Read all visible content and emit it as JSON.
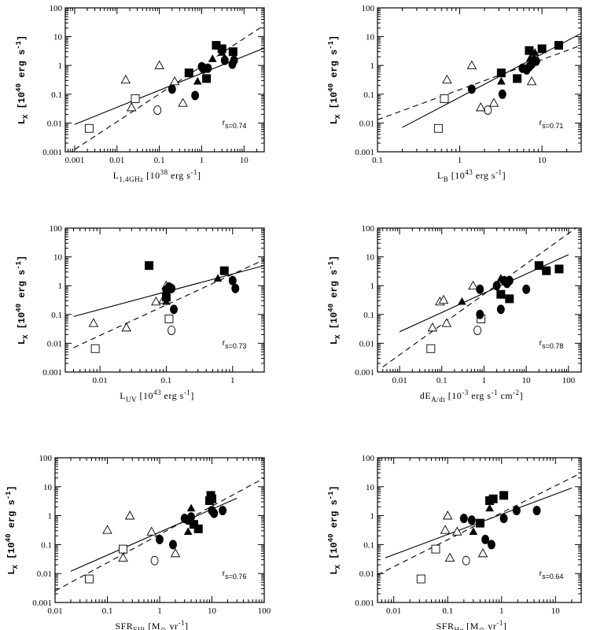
{
  "chart_data": [
    {
      "type": "scatter",
      "ylabel": "L_X [10^40 erg s^-1]",
      "xlabel": "L_1.4GHz [10^38 erg s^-1]",
      "xlog": true,
      "ylog": true,
      "xlim": [
        0.0006,
        30
      ],
      "ylim": [
        0.001,
        100
      ],
      "xticks": [
        0.001,
        0.01,
        0.1,
        1,
        10
      ],
      "xticklabels": [
        "0.001",
        "0.01",
        "0.1",
        "1",
        "10"
      ],
      "yticks": [
        0.001,
        0.01,
        0.1,
        1,
        10,
        100
      ],
      "yticklabels": [
        "0.001",
        "0.01",
        "0.1",
        "1",
        "10",
        "100"
      ],
      "rs": "r_s=0.74",
      "fits": [
        {
          "style": "solid",
          "points": [
            [
              0.001,
              0.009
            ],
            [
              30,
              4
            ]
          ]
        },
        {
          "style": "dashed",
          "points": [
            [
              0.001,
              0.0012
            ],
            [
              30,
              25
            ]
          ]
        }
      ],
      "points": [
        {
          "m": "open-square",
          "x": 0.0022,
          "y": 0.0065
        },
        {
          "m": "open-square",
          "x": 0.027,
          "y": 0.07
        },
        {
          "m": "open-circle",
          "x": 0.09,
          "y": 0.028
        },
        {
          "m": "open-triangle",
          "x": 0.016,
          "y": 0.32
        },
        {
          "m": "open-triangle",
          "x": 0.022,
          "y": 0.035
        },
        {
          "m": "open-triangle",
          "x": 0.1,
          "y": 1.0
        },
        {
          "m": "open-triangle",
          "x": 0.23,
          "y": 0.28
        },
        {
          "m": "open-triangle",
          "x": 0.36,
          "y": 0.05
        },
        {
          "m": "filled-circle",
          "x": 0.2,
          "y": 0.15
        },
        {
          "m": "filled-circle",
          "x": 0.7,
          "y": 0.09
        },
        {
          "m": "filled-circle",
          "x": 1.0,
          "y": 0.9
        },
        {
          "m": "filled-circle",
          "x": 1.1,
          "y": 0.75
        },
        {
          "m": "filled-circle",
          "x": 1.4,
          "y": 0.8
        },
        {
          "m": "filled-circle",
          "x": 3.5,
          "y": 1.5
        },
        {
          "m": "filled-circle",
          "x": 5.3,
          "y": 1.1
        },
        {
          "m": "filled-circle",
          "x": 5.8,
          "y": 1.5
        },
        {
          "m": "filled-triangle",
          "x": 0.8,
          "y": 0.28
        },
        {
          "m": "filled-triangle",
          "x": 1.8,
          "y": 1.7
        },
        {
          "m": "filled-triangle",
          "x": 3.0,
          "y": 2.8
        },
        {
          "m": "filled-square",
          "x": 0.5,
          "y": 0.55
        },
        {
          "m": "filled-square",
          "x": 1.3,
          "y": 0.35
        },
        {
          "m": "filled-square",
          "x": 2.2,
          "y": 5.0
        },
        {
          "m": "filled-square",
          "x": 3.0,
          "y": 3.8
        },
        {
          "m": "filled-square",
          "x": 5.5,
          "y": 3.0
        }
      ]
    },
    {
      "type": "scatter",
      "ylabel": "L_X [10^40 erg s^-1]",
      "xlabel": "L_B [10^43 erg s^-1]",
      "xlog": true,
      "ylog": true,
      "xlim": [
        0.1,
        30
      ],
      "ylim": [
        0.001,
        100
      ],
      "xticks": [
        0.1,
        1,
        10
      ],
      "xticklabels": [
        "0.1",
        "1",
        "10"
      ],
      "yticks": [
        0.001,
        0.01,
        0.1,
        1,
        10,
        100
      ],
      "yticklabels": [
        "0.001",
        "0.01",
        "0.1",
        "1",
        "10",
        "100"
      ],
      "rs": "r_s=0.71",
      "fits": [
        {
          "style": "solid",
          "points": [
            [
              0.2,
              0.007
            ],
            [
              30,
              13
            ]
          ]
        },
        {
          "style": "dashed",
          "points": [
            [
              0.1,
              0.013
            ],
            [
              30,
              5
            ]
          ]
        }
      ],
      "points": [
        {
          "m": "open-square",
          "x": 0.55,
          "y": 0.0065
        },
        {
          "m": "open-square",
          "x": 0.65,
          "y": 0.07
        },
        {
          "m": "open-circle",
          "x": 2.2,
          "y": 0.028
        },
        {
          "m": "open-triangle",
          "x": 0.7,
          "y": 0.32
        },
        {
          "m": "open-triangle",
          "x": 1.4,
          "y": 1.0
        },
        {
          "m": "open-triangle",
          "x": 1.8,
          "y": 0.035
        },
        {
          "m": "open-triangle",
          "x": 2.6,
          "y": 0.05
        },
        {
          "m": "open-triangle",
          "x": 7.5,
          "y": 0.28
        },
        {
          "m": "filled-circle",
          "x": 1.4,
          "y": 0.15
        },
        {
          "m": "filled-circle",
          "x": 3.3,
          "y": 0.1
        },
        {
          "m": "filled-circle",
          "x": 5.8,
          "y": 0.8
        },
        {
          "m": "filled-circle",
          "x": 6.5,
          "y": 0.7
        },
        {
          "m": "filled-circle",
          "x": 7.0,
          "y": 0.9
        },
        {
          "m": "filled-circle",
          "x": 7.5,
          "y": 1.1
        },
        {
          "m": "filled-circle",
          "x": 8.0,
          "y": 1.5
        },
        {
          "m": "filled-circle",
          "x": 8.5,
          "y": 1.4
        },
        {
          "m": "filled-triangle",
          "x": 3.2,
          "y": 0.28
        },
        {
          "m": "filled-triangle",
          "x": 7.2,
          "y": 1.8
        },
        {
          "m": "filled-triangle",
          "x": 8.2,
          "y": 2.8
        },
        {
          "m": "filled-square",
          "x": 3.2,
          "y": 0.55
        },
        {
          "m": "filled-square",
          "x": 5.0,
          "y": 0.35
        },
        {
          "m": "filled-square",
          "x": 7.0,
          "y": 3.3
        },
        {
          "m": "filled-square",
          "x": 10,
          "y": 3.8
        },
        {
          "m": "filled-square",
          "x": 16,
          "y": 5.0
        }
      ]
    },
    {
      "type": "scatter",
      "ylabel": "L_X [10^40 erg s^-1]",
      "xlabel": "L_UV [10^43 erg s^-1]",
      "xlog": true,
      "ylog": true,
      "xlim": [
        0.003,
        3
      ],
      "ylim": [
        0.001,
        100
      ],
      "xticks": [
        0.01,
        0.1,
        1
      ],
      "xticklabels": [
        "0.01",
        "0.1",
        "1"
      ],
      "yticks": [
        0.001,
        0.01,
        0.1,
        1,
        10,
        100
      ],
      "yticklabels": [
        "0.001",
        "0.01",
        "0.1",
        "1",
        "10",
        "100"
      ],
      "rs": "r_s=0.73",
      "fits": [
        {
          "style": "solid",
          "points": [
            [
              0.004,
              0.085
            ],
            [
              3,
              5
            ]
          ]
        },
        {
          "style": "dashed",
          "points": [
            [
              0.004,
              0.007
            ],
            [
              3,
              8
            ]
          ]
        }
      ],
      "points": [
        {
          "m": "open-square",
          "x": 0.0085,
          "y": 0.0065
        },
        {
          "m": "open-square",
          "x": 0.11,
          "y": 0.07
        },
        {
          "m": "open-circle",
          "x": 0.12,
          "y": 0.028
        },
        {
          "m": "open-triangle",
          "x": 0.008,
          "y": 0.05
        },
        {
          "m": "open-triangle",
          "x": 0.025,
          "y": 0.035
        },
        {
          "m": "open-triangle",
          "x": 0.07,
          "y": 0.28
        },
        {
          "m": "open-triangle",
          "x": 0.09,
          "y": 0.32
        },
        {
          "m": "open-triangle",
          "x": 0.1,
          "y": 1.0
        },
        {
          "m": "filled-circle",
          "x": 0.1,
          "y": 0.7
        },
        {
          "m": "filled-circle",
          "x": 0.11,
          "y": 0.9
        },
        {
          "m": "filled-circle",
          "x": 0.12,
          "y": 0.8
        },
        {
          "m": "filled-circle",
          "x": 0.13,
          "y": 0.15
        },
        {
          "m": "filled-circle",
          "x": 1.0,
          "y": 1.5
        },
        {
          "m": "filled-circle",
          "x": 1.1,
          "y": 0.8
        },
        {
          "m": "filled-triangle",
          "x": 0.6,
          "y": 1.8
        },
        {
          "m": "filled-triangle",
          "x": 0.1,
          "y": 0.28
        },
        {
          "m": "filled-square",
          "x": 0.055,
          "y": 5.0
        },
        {
          "m": "filled-square",
          "x": 0.1,
          "y": 0.4
        },
        {
          "m": "filled-square",
          "x": 0.75,
          "y": 3.3
        }
      ]
    },
    {
      "type": "scatter",
      "ylabel": "L_X [10^40 erg s^-1]",
      "xlabel": "dE_A/dt [10^-3 erg s^-1 cm^-2]",
      "xlog": true,
      "ylog": true,
      "xlim": [
        0.003,
        200
      ],
      "ylim": [
        0.001,
        100
      ],
      "xticks": [
        0.01,
        0.1,
        1,
        10,
        100
      ],
      "xticklabels": [
        "0.01",
        "0.1",
        "1",
        "10",
        "100"
      ],
      "yticks": [
        0.001,
        0.01,
        0.1,
        1,
        10,
        100
      ],
      "yticklabels": [
        "0.001",
        "0.01",
        "0.1",
        "1",
        "10",
        "100"
      ],
      "rs": "r_s=0.78",
      "fits": [
        {
          "style": "solid",
          "points": [
            [
              0.01,
              0.025
            ],
            [
              100,
              12
            ]
          ]
        },
        {
          "style": "dashed",
          "points": [
            [
              0.004,
              0.0015
            ],
            [
              150,
              100
            ]
          ]
        }
      ],
      "points": [
        {
          "m": "open-square",
          "x": 0.055,
          "y": 0.0065
        },
        {
          "m": "open-square",
          "x": 0.85,
          "y": 0.07
        },
        {
          "m": "open-circle",
          "x": 0.7,
          "y": 0.028
        },
        {
          "m": "open-triangle",
          "x": 0.06,
          "y": 0.035
        },
        {
          "m": "open-triangle",
          "x": 0.09,
          "y": 0.28
        },
        {
          "m": "open-triangle",
          "x": 0.11,
          "y": 0.32
        },
        {
          "m": "open-triangle",
          "x": 0.13,
          "y": 0.05
        },
        {
          "m": "open-triangle",
          "x": 0.55,
          "y": 1.0
        },
        {
          "m": "filled-circle",
          "x": 0.8,
          "y": 0.1
        },
        {
          "m": "filled-circle",
          "x": 0.8,
          "y": 0.75
        },
        {
          "m": "filled-circle",
          "x": 2.0,
          "y": 1.0
        },
        {
          "m": "filled-circle",
          "x": 2.5,
          "y": 0.15
        },
        {
          "m": "filled-circle",
          "x": 3.0,
          "y": 1.5
        },
        {
          "m": "filled-circle",
          "x": 3.5,
          "y": 1.2
        },
        {
          "m": "filled-circle",
          "x": 4.0,
          "y": 1.5
        },
        {
          "m": "filled-circle",
          "x": 10,
          "y": 0.75
        },
        {
          "m": "filled-triangle",
          "x": 0.3,
          "y": 0.28
        },
        {
          "m": "filled-triangle",
          "x": 2.5,
          "y": 1.8
        },
        {
          "m": "filled-square",
          "x": 2.5,
          "y": 0.5
        },
        {
          "m": "filled-square",
          "x": 4.0,
          "y": 0.35
        },
        {
          "m": "filled-square",
          "x": 20,
          "y": 5.0
        },
        {
          "m": "filled-square",
          "x": 30,
          "y": 3.3
        },
        {
          "m": "filled-square",
          "x": 60,
          "y": 3.8
        }
      ]
    },
    {
      "type": "scatter",
      "ylabel": "L_X [10^40 erg s^-1]",
      "xlabel": "SFR_FIR [M_⊙ yr^-1]",
      "xlog": true,
      "ylog": true,
      "xlim": [
        0.01,
        100
      ],
      "ylim": [
        0.001,
        100
      ],
      "xticks": [
        0.01,
        0.1,
        1,
        10,
        100
      ],
      "xticklabels": [
        "0.01",
        "0.1",
        "1",
        "10",
        "100"
      ],
      "yticks": [
        0.001,
        0.01,
        0.1,
        1,
        10,
        100
      ],
      "yticklabels": [
        "0.001",
        "0.01",
        "0.1",
        "1",
        "10",
        "100"
      ],
      "rs": "r_s=0.76",
      "fits": [
        {
          "style": "solid",
          "points": [
            [
              0.02,
              0.012
            ],
            [
              30,
              4
            ]
          ]
        },
        {
          "style": "dashed",
          "points": [
            [
              0.01,
              0.0025
            ],
            [
              100,
              20
            ]
          ]
        }
      ],
      "points": [
        {
          "m": "open-square",
          "x": 0.045,
          "y": 0.0065
        },
        {
          "m": "open-square",
          "x": 0.2,
          "y": 0.07
        },
        {
          "m": "open-circle",
          "x": 0.8,
          "y": 0.028
        },
        {
          "m": "open-triangle",
          "x": 0.1,
          "y": 0.32
        },
        {
          "m": "open-triangle",
          "x": 0.2,
          "y": 0.035
        },
        {
          "m": "open-triangle",
          "x": 0.27,
          "y": 1.0
        },
        {
          "m": "open-triangle",
          "x": 0.7,
          "y": 0.28
        },
        {
          "m": "open-triangle",
          "x": 2.0,
          "y": 0.05
        },
        {
          "m": "filled-circle",
          "x": 1.0,
          "y": 0.15
        },
        {
          "m": "filled-circle",
          "x": 1.8,
          "y": 0.1
        },
        {
          "m": "filled-circle",
          "x": 3.0,
          "y": 0.8
        },
        {
          "m": "filled-circle",
          "x": 3.5,
          "y": 0.7
        },
        {
          "m": "filled-circle",
          "x": 4.0,
          "y": 0.9
        },
        {
          "m": "filled-circle",
          "x": 10,
          "y": 1.5
        },
        {
          "m": "filled-circle",
          "x": 11,
          "y": 1.2
        },
        {
          "m": "filled-circle",
          "x": 16,
          "y": 1.5
        },
        {
          "m": "filled-triangle",
          "x": 4.0,
          "y": 1.8
        },
        {
          "m": "filled-triangle",
          "x": 3.5,
          "y": 0.28
        },
        {
          "m": "filled-square",
          "x": 4.5,
          "y": 0.5
        },
        {
          "m": "filled-square",
          "x": 5.5,
          "y": 0.35
        },
        {
          "m": "filled-square",
          "x": 9.0,
          "y": 3.3
        },
        {
          "m": "filled-square",
          "x": 9.5,
          "y": 5.0
        },
        {
          "m": "filled-square",
          "x": 10,
          "y": 3.8
        }
      ]
    },
    {
      "type": "scatter",
      "ylabel": "L_X [10^40 erg s^-1]",
      "xlabel": "SFR_Hα [M_⊙ yr^-1]",
      "xlog": true,
      "ylog": true,
      "xlim": [
        0.005,
        30
      ],
      "ylim": [
        0.001,
        100
      ],
      "xticks": [
        0.01,
        0.1,
        1,
        10
      ],
      "xticklabels": [
        "0.01",
        "0.1",
        "1",
        "10"
      ],
      "yticks": [
        0.001,
        0.01,
        0.1,
        1,
        10,
        100
      ],
      "yticklabels": [
        "0.001",
        "0.01",
        "0.1",
        "1",
        "10",
        "100"
      ],
      "rs": "r_s=0.64",
      "fits": [
        {
          "style": "solid",
          "points": [
            [
              0.007,
              0.035
            ],
            [
              20,
              9
            ]
          ]
        },
        {
          "style": "dashed",
          "points": [
            [
              0.005,
              0.009
            ],
            [
              30,
              30
            ]
          ]
        }
      ],
      "points": [
        {
          "m": "open-square",
          "x": 0.032,
          "y": 0.0065
        },
        {
          "m": "open-square",
          "x": 0.06,
          "y": 0.07
        },
        {
          "m": "open-circle",
          "x": 0.22,
          "y": 0.028
        },
        {
          "m": "open-triangle",
          "x": 0.09,
          "y": 0.32
        },
        {
          "m": "open-triangle",
          "x": 0.1,
          "y": 1.0
        },
        {
          "m": "open-triangle",
          "x": 0.11,
          "y": 0.035
        },
        {
          "m": "open-triangle",
          "x": 0.15,
          "y": 0.28
        },
        {
          "m": "open-triangle",
          "x": 0.45,
          "y": 0.05
        },
        {
          "m": "filled-circle",
          "x": 0.2,
          "y": 0.8
        },
        {
          "m": "filled-circle",
          "x": 0.28,
          "y": 0.7
        },
        {
          "m": "filled-circle",
          "x": 0.5,
          "y": 0.15
        },
        {
          "m": "filled-circle",
          "x": 0.65,
          "y": 0.1
        },
        {
          "m": "filled-circle",
          "x": 1.1,
          "y": 0.8
        },
        {
          "m": "filled-circle",
          "x": 1.9,
          "y": 1.5
        },
        {
          "m": "filled-circle",
          "x": 4.5,
          "y": 1.5
        },
        {
          "m": "filled-triangle",
          "x": 0.3,
          "y": 0.28
        },
        {
          "m": "filled-triangle",
          "x": 0.6,
          "y": 1.8
        },
        {
          "m": "filled-square",
          "x": 0.4,
          "y": 0.55
        },
        {
          "m": "filled-square",
          "x": 0.6,
          "y": 3.3
        },
        {
          "m": "filled-square",
          "x": 0.7,
          "y": 3.8
        },
        {
          "m": "filled-square",
          "x": 1.1,
          "y": 5.0
        }
      ]
    }
  ]
}
